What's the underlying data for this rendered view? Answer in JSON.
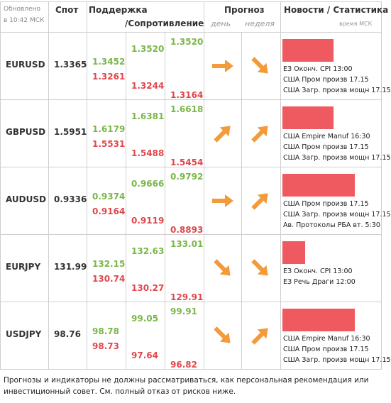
{
  "header": {
    "updated": "Обновлено",
    "time": "в 10:42 МСК",
    "spot": "Спот",
    "support": "Поддержка",
    "resistance": "/Сопротивление",
    "forecast": "Прогноз",
    "day": "день",
    "week": "неделя",
    "news": "Новости / Статистика",
    "news_time": "время МСК"
  },
  "rows": [
    {
      "pair": "EURUSD",
      "spot": "1.3365",
      "levels": [
        [
          "1.3452",
          "1.3261"
        ],
        [
          "1.3520",
          "1.3244"
        ],
        [
          "1.3520",
          "1.3164"
        ]
      ],
      "news": [
        "ЕЗ Оконч. CPI 13:00",
        "США Пром произв 17.15",
        "США Загр. произв мощн 17.15"
      ]
    },
    {
      "pair": "GBPUSD",
      "spot": "1.5951",
      "levels": [
        [
          "1.6179",
          "1.5531"
        ],
        [
          "1.6381",
          "1.5488"
        ],
        [
          "1.6618",
          "1.5454"
        ]
      ],
      "news": [
        "США Empire Manuf 16:30",
        "США Пром произв 17.15",
        "США Загр. произв мощн 17.15"
      ]
    },
    {
      "pair": "AUDUSD",
      "spot": "0.9336",
      "levels": [
        [
          "0.9374",
          "0.9164"
        ],
        [
          "0.9666",
          "0.9119"
        ],
        [
          "0.9792",
          "0.8893"
        ]
      ],
      "news": [
        "США Пром произв 17.15",
        "США Загр. произв мощн 17.15",
        "Ав. Протоколы РБА вт. 5:30"
      ]
    },
    {
      "pair": "EURJPY",
      "spot": "131.99",
      "levels": [
        [
          "132.15",
          "130.74"
        ],
        [
          "132.63",
          "130.27"
        ],
        [
          "133.01",
          "129.91"
        ]
      ],
      "news": [
        "ЕЗ Оконч. CPI 13:00",
        "ЕЗ Речь Драги 12:00"
      ]
    },
    {
      "pair": "USDJPY",
      "spot": "98.76",
      "levels": [
        [
          "98.78",
          "98.73"
        ],
        [
          "99.05",
          "97.64"
        ],
        [
          "99.91",
          "96.82"
        ]
      ],
      "news": [
        "США Empire Manuf 16:30",
        "США Пром произв 17.15",
        "США Загр. произв мощн 17.15"
      ]
    }
  ],
  "footer": "Прогнозы и индикаторы не должны рассматриваться, как персональная рекомендация или инвестиционный совет. См. полный отказ от рисков ниже."
}
